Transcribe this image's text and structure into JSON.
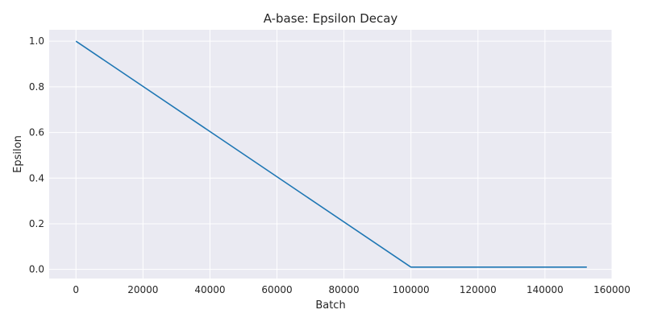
{
  "chart_data": {
    "type": "line",
    "title": "A-base: Epsilon Decay",
    "xlabel": "Batch",
    "ylabel": "Epsilon",
    "xlim": [
      -8000,
      160000
    ],
    "ylim": [
      -0.04,
      1.05
    ],
    "x_ticks": [
      0,
      20000,
      40000,
      60000,
      80000,
      100000,
      120000,
      140000,
      160000
    ],
    "y_ticks": [
      0.0,
      0.2,
      0.4,
      0.6,
      0.8,
      1.0
    ],
    "grid": true,
    "legend": "none",
    "series": [
      {
        "color": "#1f77b4",
        "x": [
          0,
          100000,
          152500
        ],
        "y": [
          1.0,
          0.01,
          0.01
        ]
      }
    ],
    "colors": {
      "plot_background": "#eaeaf2",
      "grid": "#ffffff",
      "line": "#1f77b4"
    }
  }
}
